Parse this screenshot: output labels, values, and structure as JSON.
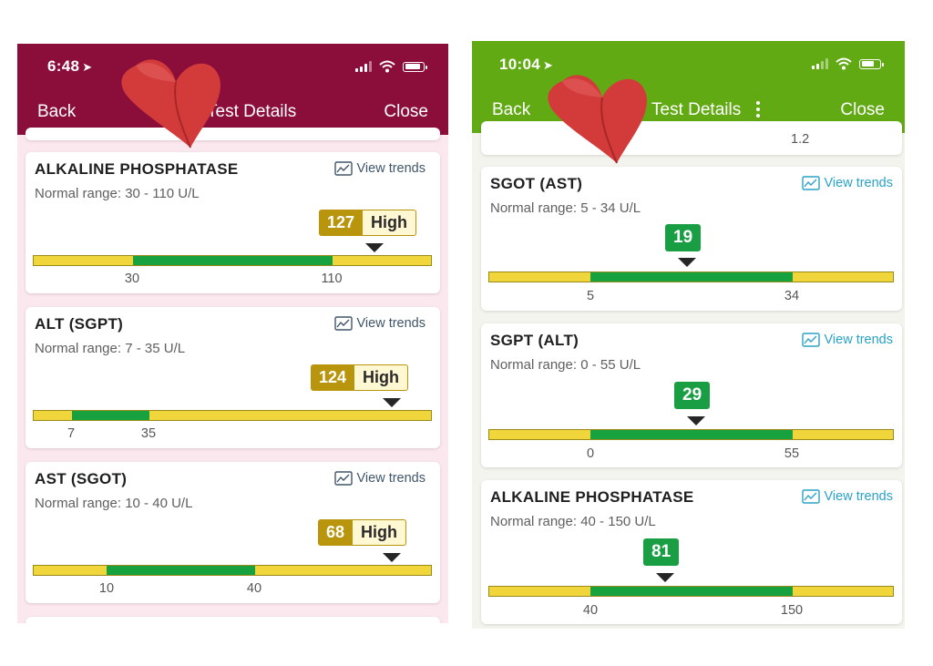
{
  "left_screen": {
    "status": {
      "time": "6:48",
      "location_icon": "location-arrow-icon"
    },
    "header": {
      "back_label": "Back",
      "title": "Test Details",
      "close_label": "Close",
      "color": "#8b0d39"
    },
    "view_trends_label": "View trends",
    "tests": [
      {
        "name": "ALKALINE PHOSPHATASE",
        "range": "Normal range: 30 - 110 U/L",
        "value": "127",
        "status": "High",
        "low_tick": "30",
        "high_tick": "110"
      },
      {
        "name": "ALT (SGPT)",
        "range": "Normal range: 7 - 35 U/L",
        "value": "124",
        "status": "High",
        "low_tick": "7",
        "high_tick": "35"
      },
      {
        "name": "AST (SGOT)",
        "range": "Normal range: 10 - 40 U/L",
        "value": "68",
        "status": "High",
        "low_tick": "10",
        "high_tick": "40"
      }
    ]
  },
  "right_screen": {
    "status": {
      "time": "10:04",
      "location_icon": "location-arrow-icon"
    },
    "header": {
      "back_label": "Back",
      "title": "Test Details",
      "close_label": "Close",
      "color": "#62aa14"
    },
    "view_trends_label": "View trends",
    "partial_top_value": "1.2",
    "tests": [
      {
        "name": "SGOT (AST)",
        "range": "Normal range: 5 - 34 U/L",
        "value": "19",
        "low_tick": "5",
        "high_tick": "34"
      },
      {
        "name": "SGPT (ALT)",
        "range": "Normal range: 0 - 55 U/L",
        "value": "29",
        "low_tick": "0",
        "high_tick": "55"
      },
      {
        "name": "ALKALINE PHOSPHATASE",
        "range": "Normal range: 40 - 150 U/L",
        "value": "81",
        "low_tick": "40",
        "high_tick": "150"
      }
    ]
  },
  "colors": {
    "high_badge": "#b8950c",
    "normal_badge": "#1a9e44",
    "bar_out_of_range": "#f1d63b",
    "bar_in_range": "#18a13f",
    "heart_sticker": "#d33b3b"
  }
}
